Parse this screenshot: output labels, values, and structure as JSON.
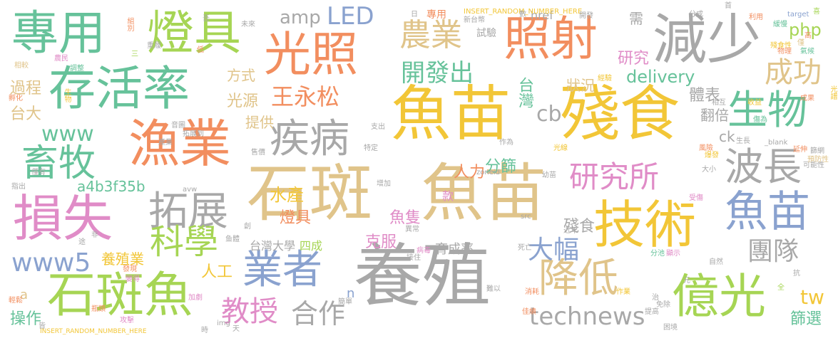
{
  "cloud": {
    "palette": {
      "gold": "#f2c637",
      "tan": "#e0c48a",
      "orange": "#f28e5f",
      "green": "#66c29a",
      "blue": "#8aa2cf",
      "pink": "#e08cc7",
      "lime": "#a6d554",
      "gray": "#a8a8a8"
    },
    "words": [
      "專用",
      "燈具",
      "光照",
      "照射",
      "減少",
      "存活率",
      "生物",
      "魚苗",
      "殘食",
      "漁業",
      "疾病",
      "畜牧",
      "石斑",
      "魚苗",
      "技術",
      "損失",
      "拓展",
      "科學",
      "研究所",
      "波長",
      "魚苗",
      "www5",
      "石斑魚",
      "業者",
      "養殖",
      "降低",
      "億光",
      "教授",
      "合作",
      "technews",
      "農業",
      "開發出",
      "成功",
      "LED",
      "amp",
      "php",
      "王永松",
      "光源",
      "研究",
      "delivery",
      "體表",
      "台灣",
      "狀況",
      "cb",
      "方式",
      "過程",
      "台大",
      "www",
      "提供",
      "人力",
      "分篩",
      "水產",
      "a4b3f35b",
      "大幅",
      "團隊",
      "tw",
      "篩選",
      "魚隻",
      "殘食",
      "台灣大學",
      "四成",
      "克服",
      "育成率",
      "燈具",
      "人工",
      "養殖業",
      "操作",
      "翻倍",
      "需",
      "試驗",
      "專用",
      "href",
      "INSERT_RANDOM_NUMBER_HERE",
      "ck",
      "n",
      "a",
      "款",
      "_blank",
      "target",
      "zoneid",
      "src",
      "img",
      "avw"
    ],
    "small_words": [
      "組別",
      "相較",
      "孵化",
      "生物",
      "延伸",
      "光譜",
      "農民",
      "調整",
      "新台幣",
      "經驗",
      "開發",
      "殘食性",
      "分成",
      "利用",
      "緩慢",
      "物理",
      "氣候",
      "可能性",
      "篩網",
      "預防性",
      "成果",
      "自然",
      "光線",
      "大小",
      "幼苗",
      "異常",
      "病毒",
      "死亡",
      "近年",
      "分池",
      "顯示",
      "作業",
      "消耗",
      "佳績",
      "提高",
      "免除",
      "困境",
      "攻擊",
      "瓶頸",
      "輕鬆",
      "指出",
      "僅有",
      "發現",
      "變得",
      "加劇",
      "簡單",
      "接住",
      "售價",
      "產業",
      "音圖",
      "拓展到",
      "生長",
      "風險",
      "爆發",
      "相互",
      "收益",
      "傷為",
      "未來",
      "重履",
      "三",
      "高",
      "低",
      "僅",
      "元",
      "治",
      "全",
      "抗",
      "受傷",
      "特定",
      "支出",
      "創",
      "非",
      "途",
      "皆",
      "時",
      "天",
      "鱼體",
      "難以",
      "增加",
      "作為",
      "日",
      "數",
      "首",
      "吾",
      "喜",
      "高"
    ]
  }
}
